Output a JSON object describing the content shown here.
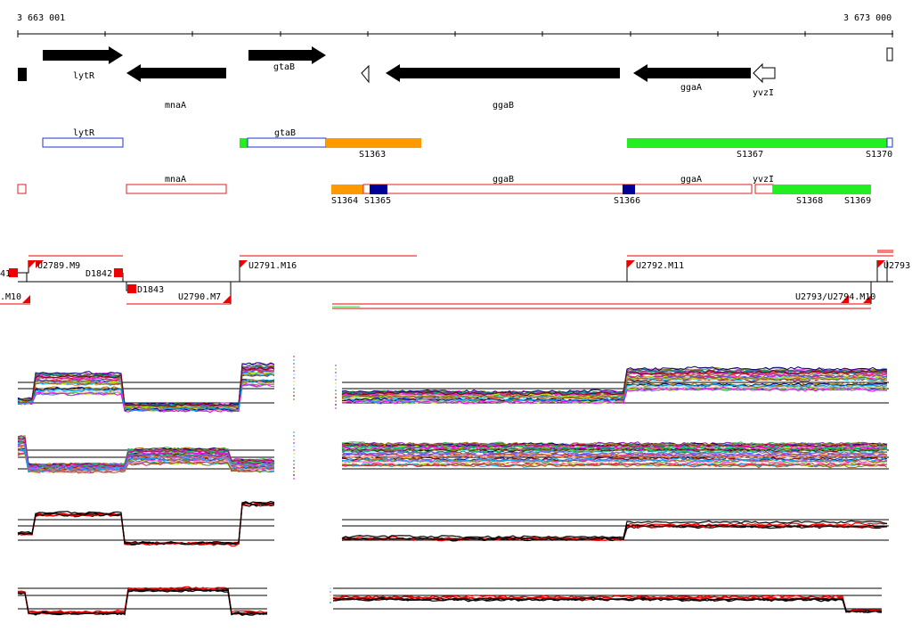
{
  "coordinates": {
    "start": "3 663 001",
    "end": "3 673 000"
  },
  "genes": [
    {
      "label": "",
      "dir": "right",
      "filled": true
    },
    {
      "label": "lytR",
      "dir": "right",
      "filled": true
    },
    {
      "label": "mnaA",
      "dir": "left",
      "filled": true
    },
    {
      "label": "gtaB",
      "dir": "right",
      "filled": true
    },
    {
      "label": "",
      "dir": "left",
      "filled": false
    },
    {
      "label": "ggaB",
      "dir": "left",
      "filled": true
    },
    {
      "label": "ggaA",
      "dir": "left",
      "filled": true
    },
    {
      "label": "yvzI",
      "dir": "left",
      "filled": false
    },
    {
      "label": "",
      "dir": "right",
      "filled": false
    }
  ],
  "transcripts_forward": [
    {
      "label": "lytR"
    },
    {
      "label": "gtaB"
    },
    {
      "label": "S1363"
    },
    {
      "label": "S1367"
    },
    {
      "label": "S1370"
    }
  ],
  "transcripts_reverse": [
    {
      "label": "mnaA"
    },
    {
      "label": "ggaB"
    },
    {
      "label": "ggaA"
    },
    {
      "label": "yvzI"
    },
    {
      "label": "S1364"
    },
    {
      "label": "S1365"
    },
    {
      "label": "S1366"
    },
    {
      "label": "S1368"
    },
    {
      "label": "S1369"
    }
  ],
  "segments": {
    "upper": [
      {
        "label": "41"
      },
      {
        "label": "U2789.M9"
      },
      {
        "label": "D1842"
      },
      {
        "label": "U2791.M16"
      },
      {
        "label": "U2792.M11"
      },
      {
        "label": "U2793"
      }
    ],
    "lower": [
      {
        "label": ".M10"
      },
      {
        "label": "D1843"
      },
      {
        "label": "U2790.M7"
      },
      {
        "label": "U2793/U2794.M10"
      }
    ]
  },
  "colors": {
    "gene": "#000000",
    "forward_box": "#2233cc",
    "reverse_box": "#dd2222",
    "orange": "#ff9900",
    "green": "#22ee22",
    "navy": "#000099",
    "red": "#ee0000"
  }
}
